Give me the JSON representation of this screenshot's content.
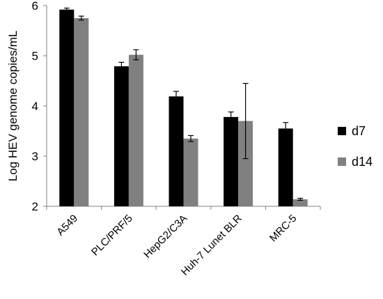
{
  "chart_data": {
    "type": "bar",
    "ylabel": "Log HEV genome copies/mL",
    "ylim": [
      2,
      6
    ],
    "yticks": [
      "2",
      "3",
      "4",
      "5",
      "6"
    ],
    "categories": [
      "A549",
      "PLC/PRF/5",
      "HepG2/C3A",
      "Huh-7 Lunet BLR",
      "MRC-5"
    ],
    "series": [
      {
        "name": "d7",
        "color": "#000000",
        "values": [
          5.92,
          4.79,
          4.19,
          3.78,
          3.55
        ],
        "errors": [
          0.03,
          0.08,
          0.1,
          0.1,
          0.12
        ]
      },
      {
        "name": "d14",
        "color": "#808080",
        "values": [
          5.75,
          5.02,
          3.35,
          3.7,
          2.14
        ],
        "errors": [
          0.04,
          0.1,
          0.06,
          0.75,
          0.02
        ]
      }
    ],
    "grid": false,
    "legend": "right"
  }
}
